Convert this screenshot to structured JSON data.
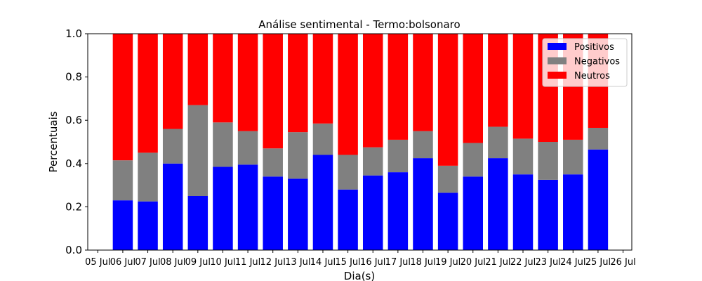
{
  "chart_data": {
    "type": "bar",
    "stacked": true,
    "title": "Análise sentimental - Termo:bolsonaro",
    "xlabel": "Dia(s)",
    "ylabel": "Percentuais",
    "ylim": [
      0,
      1.0
    ],
    "yticks": [
      "0.0",
      "0.2",
      "0.4",
      "0.6",
      "0.8",
      "1.0"
    ],
    "xticks": [
      "05 Jul",
      "06 Jul",
      "07 Jul",
      "08 Jul",
      "09 Jul",
      "10 Jul",
      "11 Jul",
      "12 Jul",
      "13 Jul",
      "14 Jul",
      "15 Jul",
      "16 Jul",
      "17 Jul",
      "18 Jul",
      "19 Jul",
      "20 Jul",
      "21 Jul",
      "22 Jul",
      "23 Jul",
      "24 Jul",
      "25 Jul",
      "26 Jul"
    ],
    "categories": [
      "06 Jul",
      "07 Jul",
      "08 Jul",
      "09 Jul",
      "10 Jul",
      "11 Jul",
      "12 Jul",
      "13 Jul",
      "14 Jul",
      "15 Jul",
      "16 Jul",
      "17 Jul",
      "18 Jul",
      "19 Jul",
      "20 Jul",
      "21 Jul",
      "22 Jul",
      "23 Jul",
      "24 Jul",
      "25 Jul"
    ],
    "legend_position": "top-right",
    "grid": false,
    "series": [
      {
        "name": "Positivos",
        "color": "#0000ff",
        "values": [
          0.23,
          0.225,
          0.4,
          0.25,
          0.385,
          0.395,
          0.34,
          0.33,
          0.44,
          0.28,
          0.345,
          0.36,
          0.425,
          0.265,
          0.34,
          0.425,
          0.35,
          0.325,
          0.35,
          0.465
        ]
      },
      {
        "name": "Negativos",
        "color": "#808080",
        "values": [
          0.185,
          0.225,
          0.16,
          0.42,
          0.205,
          0.155,
          0.13,
          0.215,
          0.145,
          0.16,
          0.13,
          0.15,
          0.125,
          0.125,
          0.155,
          0.145,
          0.165,
          0.175,
          0.16,
          0.1
        ]
      },
      {
        "name": "Neutros",
        "color": "#ff0000",
        "values": [
          0.585,
          0.55,
          0.44,
          0.33,
          0.41,
          0.45,
          0.53,
          0.455,
          0.415,
          0.56,
          0.525,
          0.49,
          0.45,
          0.61,
          0.505,
          0.43,
          0.485,
          0.5,
          0.49,
          0.435
        ]
      }
    ]
  }
}
